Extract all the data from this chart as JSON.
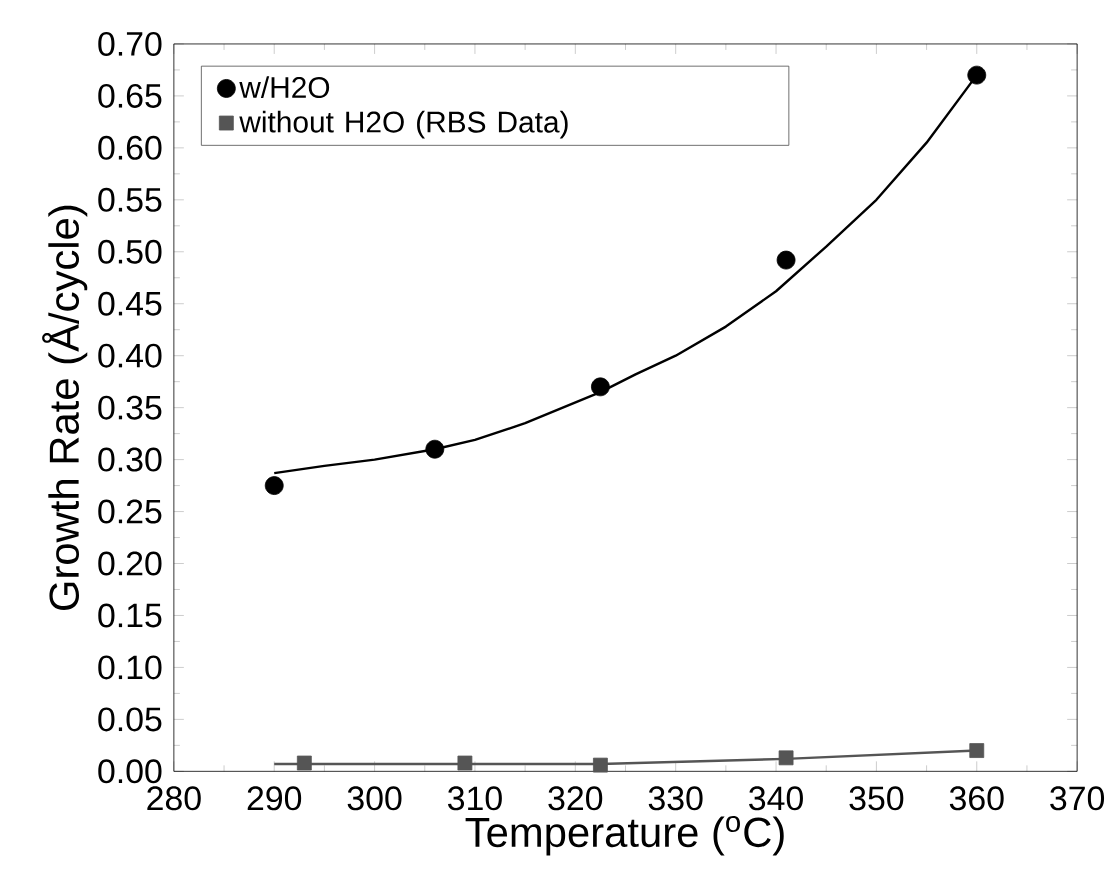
{
  "chart_data": {
    "type": "scatter",
    "xlabel": "Temperature ($^{o}$C)",
    "ylabel": "Growth Rate (Å/cycle)",
    "xlim": [
      280,
      370
    ],
    "xticks": [
      280,
      290,
      300,
      310,
      320,
      330,
      340,
      350,
      360,
      370
    ],
    "ylim": [
      0,
      0.7
    ],
    "yticks": [
      {
        "value": 0,
        "label": "0.00"
      },
      {
        "value": 0.05,
        "label": "0.05"
      },
      {
        "value": 0.1,
        "label": "0.10"
      },
      {
        "value": 0.15,
        "label": "0.15"
      },
      {
        "value": 0.2,
        "label": "0.20"
      },
      {
        "value": 0.25,
        "label": "0.25"
      },
      {
        "value": 0.3,
        "label": "0.30"
      },
      {
        "value": 0.35,
        "label": "0.35"
      },
      {
        "value": 0.4,
        "label": "0.40"
      },
      {
        "value": 0.45,
        "label": "0.45"
      },
      {
        "value": 0.5,
        "label": "0.50"
      },
      {
        "value": 0.55,
        "label": "0.55"
      },
      {
        "value": 0.6,
        "label": "0.60"
      },
      {
        "value": 0.65,
        "label": "0.65"
      },
      {
        "value": 0.7,
        "label": "0.70"
      }
    ],
    "legend": "top left",
    "grid": false,
    "series": [
      {
        "name": "w/H2O",
        "marker": "circle",
        "color": "#000000",
        "x": [
          290,
          306,
          322.5,
          341,
          360
        ],
        "values": [
          0.275,
          0.31,
          0.37,
          0.492,
          0.67
        ]
      },
      {
        "name": "without H2O (RBS Data)",
        "marker": "square",
        "color": "#555555",
        "x": [
          293,
          309,
          322.5,
          341,
          360
        ],
        "values": [
          0.008,
          0.008,
          0.006,
          0.013,
          0.02
        ]
      },
      {
        "type": "line",
        "color": "#000000",
        "x": [
          290,
          295,
          300,
          306,
          310,
          315,
          320,
          322.5,
          326,
          330,
          335,
          340,
          345,
          350,
          355,
          360
        ],
        "values": [
          0.287,
          0.294,
          0.3,
          0.31,
          0.319,
          0.335,
          0.355,
          0.365,
          0.382,
          0.4,
          0.428,
          0.462,
          0.505,
          0.55,
          0.605,
          0.67
        ]
      },
      {
        "type": "line",
        "color": "#555555",
        "x": [
          290,
          322.5,
          341,
          360
        ],
        "values": [
          0.007,
          0.007,
          0.012,
          0.02
        ]
      }
    ]
  }
}
